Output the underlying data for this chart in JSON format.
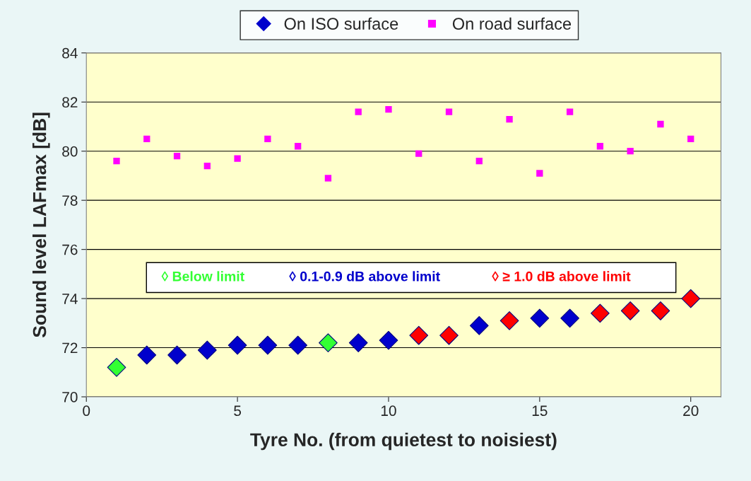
{
  "chart_data": {
    "type": "scatter",
    "xlabel": "Tyre No. (from quietest to noisiest)",
    "ylabel": "Sound level LAFmax [dB]",
    "x": [
      1,
      2,
      3,
      4,
      5,
      6,
      7,
      8,
      9,
      10,
      11,
      12,
      13,
      14,
      15,
      16,
      17,
      18,
      19,
      20
    ],
    "series": [
      {
        "name": "On ISO surface",
        "color": "#0000cc",
        "marker": "diamond",
        "colors": [
          "#33ff33",
          "#0000cc",
          "#0000cc",
          "#0000cc",
          "#0000cc",
          "#0000cc",
          "#0000cc",
          "#33ff33",
          "#0000cc",
          "#0000cc",
          "#ff0000",
          "#ff0000",
          "#0000cc",
          "#ff0000",
          "#0000cc",
          "#0000cc",
          "#ff0000",
          "#ff0000",
          "#ff0000",
          "#ff0000"
        ],
        "values": [
          71.2,
          71.7,
          71.7,
          71.9,
          72.1,
          72.1,
          72.1,
          72.2,
          72.2,
          72.3,
          72.5,
          72.5,
          72.9,
          73.1,
          73.2,
          73.2,
          73.4,
          73.5,
          73.5,
          74.0
        ]
      },
      {
        "name": "On road surface",
        "color": "#ff00ff",
        "marker": "square",
        "values": [
          79.6,
          80.5,
          79.8,
          79.4,
          79.7,
          80.5,
          80.2,
          78.9,
          81.6,
          81.7,
          79.9,
          81.6,
          79.6,
          81.3,
          79.1,
          81.6,
          80.2,
          80.0,
          81.1,
          80.5
        ]
      }
    ],
    "xlim": [
      0,
      21
    ],
    "xticks": [
      0,
      5,
      10,
      15,
      20
    ],
    "ylim": [
      70,
      84
    ],
    "yticks": [
      70,
      72,
      74,
      76,
      78,
      80,
      82,
      84
    ],
    "grid": "y",
    "legend": "top",
    "annotations": [
      "◊ Below limit",
      "◊ 0.1-0.9 dB above limit",
      "◊ ≥ 1.0 dB above limit"
    ]
  }
}
